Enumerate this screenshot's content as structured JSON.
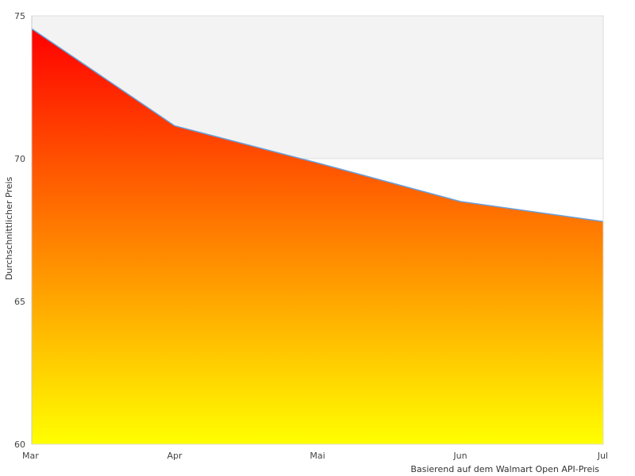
{
  "chart_data": {
    "type": "area",
    "categories": [
      "Mar",
      "Apr",
      "Mai",
      "Jun",
      "Jul"
    ],
    "values": [
      74.55,
      71.15,
      69.85,
      68.5,
      67.8
    ],
    "ylabel": "Durchschnittlicher Preis",
    "ylim": [
      60,
      75
    ],
    "yticks": [
      60,
      65,
      70,
      75
    ],
    "caption": "Basierend auf dem Walmart Open API-Preis",
    "grid": true,
    "band": [
      70,
      75
    ],
    "colors": {
      "line": "#6a9fd8",
      "fill_top": "#ff0000",
      "fill_bottom": "#ffff00",
      "band_alt": "#f3f3f3",
      "axis": "#dddddd"
    }
  }
}
